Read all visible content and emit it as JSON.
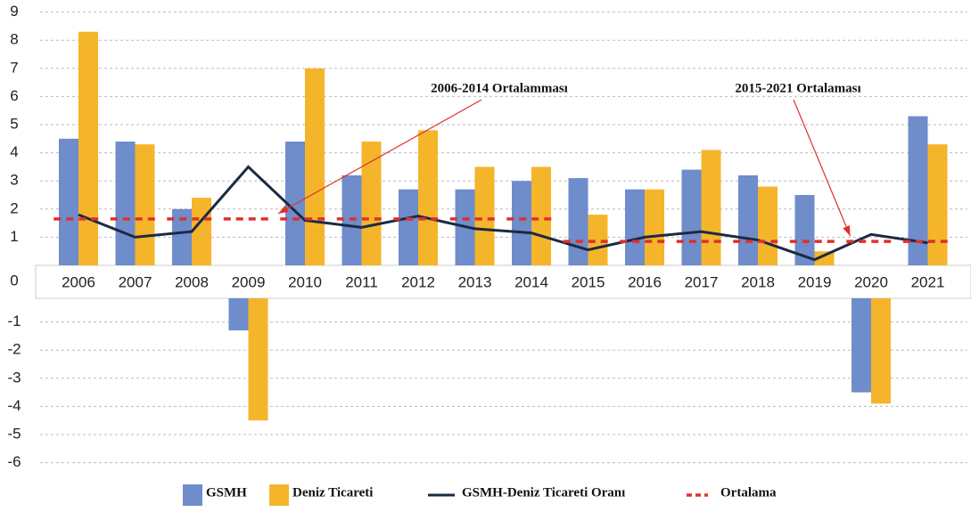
{
  "chart_data": {
    "type": "bar",
    "categories": [
      "2006",
      "2007",
      "2008",
      "2009",
      "2010",
      "2011",
      "2012",
      "2013",
      "2014",
      "2015",
      "2016",
      "2017",
      "2018",
      "2019",
      "2020",
      "2021"
    ],
    "series": [
      {
        "name": "GSMH",
        "color": "#6f8ccb",
        "type": "bar",
        "values": [
          4.5,
          4.4,
          2.0,
          -1.3,
          4.4,
          3.2,
          2.7,
          2.7,
          3.0,
          3.1,
          2.7,
          3.4,
          3.2,
          2.5,
          -3.5,
          5.3
        ]
      },
      {
        "name": "Deniz Ticareti",
        "color": "#f5b52b",
        "type": "bar",
        "values": [
          8.3,
          4.3,
          2.4,
          -4.5,
          7.0,
          4.4,
          4.8,
          3.5,
          3.5,
          1.8,
          2.7,
          4.1,
          2.8,
          0.5,
          -3.9,
          4.3
        ]
      },
      {
        "name": "GSMH-Deniz Ticareti Oranı",
        "color": "#1b2a44",
        "type": "line",
        "values": [
          1.8,
          1.0,
          1.2,
          3.5,
          1.6,
          1.35,
          1.75,
          1.3,
          1.15,
          0.55,
          1.0,
          1.2,
          0.9,
          0.2,
          1.1,
          0.8
        ]
      },
      {
        "name": "Ortalama",
        "color": "#e0302b",
        "type": "dashed",
        "values": [
          1.65,
          1.65,
          1.65,
          1.65,
          1.65,
          1.65,
          1.65,
          1.65,
          1.65,
          0.85,
          0.85,
          0.85,
          0.85,
          0.85,
          0.85,
          0.85
        ]
      }
    ],
    "annotations": [
      {
        "text": "2006-2014 Ortalamması",
        "x": "2010",
        "y": 1.65
      },
      {
        "text": "2015-2021 Ortalaması",
        "x": "2019",
        "y": 0.85
      }
    ],
    "ylim": [
      -6,
      9
    ],
    "yticks": [
      -6,
      -5,
      -4,
      -3,
      -2,
      -1,
      0,
      1,
      2,
      3,
      4,
      5,
      6,
      7,
      8,
      9
    ],
    "grid": true
  }
}
